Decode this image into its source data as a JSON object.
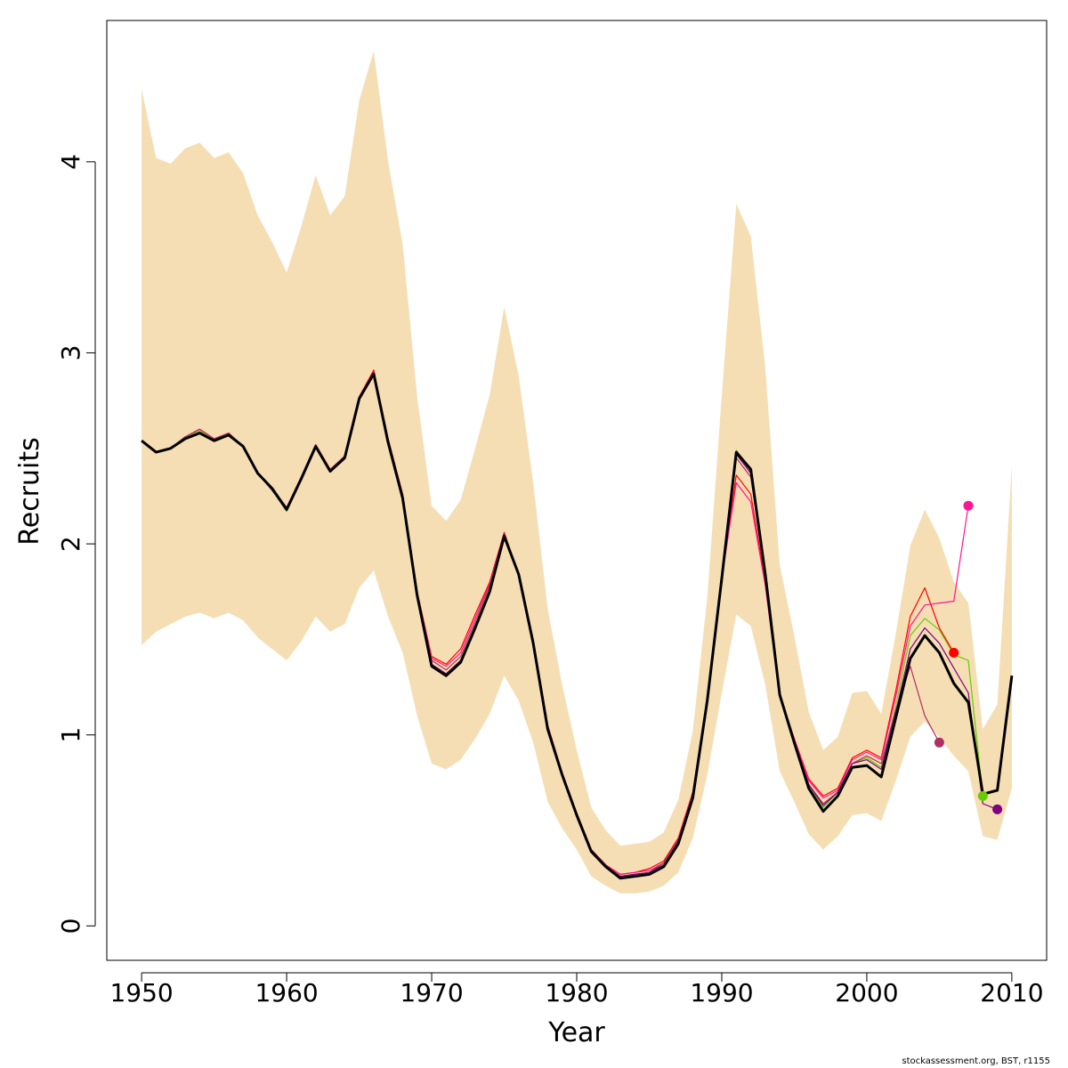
{
  "chart_data": {
    "type": "line",
    "xlabel": "Year",
    "ylabel": "Recruits",
    "xlim": [
      1947.6,
      2012.4
    ],
    "ylim": [
      -0.18,
      4.74
    ],
    "x_ticks": [
      1950,
      1960,
      1970,
      1980,
      1990,
      2000,
      2010
    ],
    "y_ticks": [
      0,
      1,
      2,
      3,
      4
    ],
    "grid": false,
    "legend": "none",
    "band": {
      "color": "#F5DEB3",
      "x": [
        1950,
        1951,
        1952,
        1953,
        1954,
        1955,
        1956,
        1957,
        1958,
        1959,
        1960,
        1961,
        1962,
        1963,
        1964,
        1965,
        1966,
        1967,
        1968,
        1969,
        1970,
        1971,
        1972,
        1973,
        1974,
        1975,
        1976,
        1977,
        1978,
        1979,
        1980,
        1981,
        1982,
        1983,
        1984,
        1985,
        1986,
        1987,
        1988,
        1989,
        1990,
        1991,
        1992,
        1993,
        1994,
        1995,
        1996,
        1997,
        1998,
        1999,
        2000,
        2001,
        2002,
        2003,
        2004,
        2005,
        2006,
        2007,
        2008,
        2009,
        2010
      ],
      "upper": [
        4.38,
        4.02,
        3.99,
        4.07,
        4.1,
        4.02,
        4.05,
        3.94,
        3.72,
        3.58,
        3.42,
        3.66,
        3.93,
        3.72,
        3.82,
        4.32,
        4.58,
        4.0,
        3.57,
        2.77,
        2.2,
        2.12,
        2.23,
        2.5,
        2.78,
        3.24,
        2.88,
        2.32,
        1.66,
        1.26,
        0.92,
        0.62,
        0.5,
        0.42,
        0.43,
        0.44,
        0.49,
        0.66,
        1.02,
        1.72,
        2.78,
        3.78,
        3.61,
        2.92,
        1.89,
        1.52,
        1.12,
        0.92,
        0.99,
        1.22,
        1.23,
        1.11,
        1.53,
        1.99,
        2.18,
        2.03,
        1.8,
        1.69,
        1.03,
        1.16,
        2.41
      ],
      "lower": [
        1.47,
        1.54,
        1.58,
        1.62,
        1.64,
        1.61,
        1.64,
        1.6,
        1.51,
        1.45,
        1.39,
        1.49,
        1.62,
        1.54,
        1.58,
        1.77,
        1.86,
        1.62,
        1.43,
        1.1,
        0.85,
        0.82,
        0.87,
        0.98,
        1.11,
        1.31,
        1.18,
        0.96,
        0.65,
        0.51,
        0.4,
        0.26,
        0.21,
        0.17,
        0.17,
        0.18,
        0.21,
        0.28,
        0.46,
        0.79,
        1.22,
        1.63,
        1.57,
        1.26,
        0.81,
        0.65,
        0.48,
        0.4,
        0.47,
        0.58,
        0.59,
        0.55,
        0.76,
        0.99,
        1.07,
        0.99,
        0.89,
        0.81,
        0.47,
        0.45,
        0.72
      ]
    },
    "series": [
      {
        "color": "#000000",
        "width": 3,
        "marker": false,
        "x": [
          1950,
          1951,
          1952,
          1953,
          1954,
          1955,
          1956,
          1957,
          1958,
          1959,
          1960,
          1961,
          1962,
          1963,
          1964,
          1965,
          1966,
          1967,
          1968,
          1969,
          1970,
          1971,
          1972,
          1973,
          1974,
          1975,
          1976,
          1977,
          1978,
          1979,
          1980,
          1981,
          1982,
          1983,
          1984,
          1985,
          1986,
          1987,
          1988,
          1989,
          1990,
          1991,
          1992,
          1993,
          1994,
          1995,
          1996,
          1997,
          1998,
          1999,
          2000,
          2001,
          2002,
          2003,
          2004,
          2005,
          2006,
          2007,
          2008,
          2009,
          2010
        ],
        "values": [
          2.54,
          2.48,
          2.5,
          2.55,
          2.58,
          2.54,
          2.57,
          2.51,
          2.37,
          2.29,
          2.18,
          2.34,
          2.51,
          2.38,
          2.45,
          2.76,
          2.89,
          2.53,
          2.24,
          1.73,
          1.36,
          1.31,
          1.38,
          1.56,
          1.75,
          2.04,
          1.84,
          1.48,
          1.03,
          0.79,
          0.58,
          0.39,
          0.31,
          0.25,
          0.26,
          0.27,
          0.31,
          0.43,
          0.67,
          1.18,
          1.82,
          2.48,
          2.39,
          1.84,
          1.21,
          0.96,
          0.72,
          0.6,
          0.68,
          0.83,
          0.84,
          0.78,
          1.09,
          1.4,
          1.52,
          1.43,
          1.27,
          1.17,
          0.69,
          0.71,
          1.31
        ]
      },
      {
        "color": "#66CC00",
        "width": 1.2,
        "marker": true,
        "x": [
          1950,
          1951,
          1952,
          1953,
          1954,
          1955,
          1956,
          1957,
          1958,
          1959,
          1960,
          1961,
          1962,
          1963,
          1964,
          1965,
          1966,
          1967,
          1968,
          1969,
          1970,
          1971,
          1972,
          1973,
          1974,
          1975,
          1976,
          1977,
          1978,
          1979,
          1980,
          1981,
          1982,
          1983,
          1984,
          1985,
          1986,
          1987,
          1988,
          1989,
          1990,
          1991,
          1992,
          1993,
          1994,
          1995,
          1996,
          1997,
          1998,
          1999,
          2000,
          2001,
          2002,
          2003,
          2004,
          2005,
          2006,
          2007,
          2008
        ],
        "values": [
          2.54,
          2.48,
          2.5,
          2.56,
          2.59,
          2.55,
          2.58,
          2.51,
          2.37,
          2.28,
          2.17,
          2.34,
          2.51,
          2.39,
          2.46,
          2.76,
          2.9,
          2.54,
          2.25,
          1.74,
          1.37,
          1.32,
          1.39,
          1.57,
          1.76,
          2.05,
          1.84,
          1.49,
          1.04,
          0.79,
          0.59,
          0.4,
          0.31,
          0.26,
          0.27,
          0.28,
          0.32,
          0.44,
          0.68,
          1.19,
          1.85,
          2.49,
          2.38,
          1.85,
          1.22,
          0.98,
          0.73,
          0.62,
          0.7,
          0.85,
          0.88,
          0.83,
          1.15,
          1.52,
          1.61,
          1.55,
          1.42,
          1.39,
          0.68
        ]
      },
      {
        "color": "#FF0000",
        "width": 1.2,
        "marker": true,
        "x": [
          1950,
          1951,
          1952,
          1953,
          1954,
          1955,
          1956,
          1957,
          1958,
          1959,
          1960,
          1961,
          1962,
          1963,
          1964,
          1965,
          1966,
          1967,
          1968,
          1969,
          1970,
          1971,
          1972,
          1973,
          1974,
          1975,
          1976,
          1977,
          1978,
          1979,
          1980,
          1981,
          1982,
          1983,
          1984,
          1985,
          1986,
          1987,
          1988,
          1989,
          1990,
          1991,
          1992,
          1993,
          1994,
          1995,
          1996,
          1997,
          1998,
          1999,
          2000,
          2001,
          2002,
          2003,
          2004,
          2005,
          2006
        ],
        "values": [
          2.54,
          2.48,
          2.5,
          2.56,
          2.6,
          2.55,
          2.58,
          2.51,
          2.37,
          2.29,
          2.19,
          2.35,
          2.52,
          2.39,
          2.46,
          2.77,
          2.91,
          2.55,
          2.26,
          1.75,
          1.41,
          1.37,
          1.45,
          1.63,
          1.8,
          2.06,
          1.84,
          1.5,
          1.05,
          0.8,
          0.59,
          0.4,
          0.32,
          0.27,
          0.28,
          0.3,
          0.34,
          0.46,
          0.7,
          1.2,
          1.84,
          2.36,
          2.26,
          1.8,
          1.21,
          0.98,
          0.77,
          0.68,
          0.72,
          0.88,
          0.92,
          0.88,
          1.23,
          1.62,
          1.77,
          1.56,
          1.43
        ]
      },
      {
        "color": "#FF1493",
        "width": 1.2,
        "marker": true,
        "x": [
          1950,
          1951,
          1952,
          1953,
          1954,
          1955,
          1956,
          1957,
          1958,
          1959,
          1960,
          1961,
          1962,
          1963,
          1964,
          1965,
          1966,
          1967,
          1968,
          1969,
          1970,
          1971,
          1972,
          1973,
          1974,
          1975,
          1976,
          1977,
          1978,
          1979,
          1980,
          1981,
          1982,
          1983,
          1984,
          1985,
          1986,
          1987,
          1988,
          1989,
          1990,
          1991,
          1992,
          1993,
          1994,
          1995,
          1996,
          1997,
          1998,
          1999,
          2000,
          2001,
          2002,
          2003,
          2004,
          2005,
          2006,
          2007
        ],
        "values": [
          2.54,
          2.48,
          2.5,
          2.56,
          2.6,
          2.55,
          2.58,
          2.51,
          2.37,
          2.29,
          2.19,
          2.35,
          2.52,
          2.39,
          2.46,
          2.77,
          2.9,
          2.55,
          2.26,
          1.75,
          1.4,
          1.36,
          1.43,
          1.61,
          1.79,
          2.05,
          1.84,
          1.5,
          1.05,
          0.8,
          0.59,
          0.4,
          0.32,
          0.27,
          0.28,
          0.29,
          0.33,
          0.45,
          0.69,
          1.19,
          1.82,
          2.32,
          2.22,
          1.78,
          1.2,
          0.98,
          0.76,
          0.67,
          0.71,
          0.87,
          0.91,
          0.87,
          1.2,
          1.57,
          1.68,
          1.69,
          1.7,
          2.2
        ]
      },
      {
        "color": "#B03060",
        "width": 1.2,
        "marker": true,
        "x": [
          1950,
          1951,
          1952,
          1953,
          1954,
          1955,
          1956,
          1957,
          1958,
          1959,
          1960,
          1961,
          1962,
          1963,
          1964,
          1965,
          1966,
          1967,
          1968,
          1969,
          1970,
          1971,
          1972,
          1973,
          1974,
          1975,
          1976,
          1977,
          1978,
          1979,
          1980,
          1981,
          1982,
          1983,
          1984,
          1985,
          1986,
          1987,
          1988,
          1989,
          1990,
          1991,
          1992,
          1993,
          1994,
          1995,
          1996,
          1997,
          1998,
          1999,
          2000,
          2001,
          2002,
          2003,
          2004,
          2005
        ],
        "values": [
          2.54,
          2.48,
          2.5,
          2.56,
          2.6,
          2.55,
          2.58,
          2.51,
          2.37,
          2.29,
          2.19,
          2.35,
          2.52,
          2.39,
          2.46,
          2.77,
          2.9,
          2.55,
          2.26,
          1.75,
          1.39,
          1.34,
          1.41,
          1.59,
          1.78,
          2.05,
          1.84,
          1.5,
          1.05,
          0.8,
          0.59,
          0.4,
          0.32,
          0.26,
          0.27,
          0.28,
          0.33,
          0.45,
          0.69,
          1.19,
          1.83,
          2.45,
          2.35,
          1.83,
          1.21,
          0.97,
          0.74,
          0.64,
          0.7,
          0.85,
          0.89,
          0.85,
          1.13,
          1.36,
          1.1,
          0.96
        ]
      },
      {
        "color": "#800080",
        "width": 1.2,
        "marker": true,
        "x": [
          1950,
          1951,
          1952,
          1953,
          1954,
          1955,
          1956,
          1957,
          1958,
          1959,
          1960,
          1961,
          1962,
          1963,
          1964,
          1965,
          1966,
          1967,
          1968,
          1969,
          1970,
          1971,
          1972,
          1973,
          1974,
          1975,
          1976,
          1977,
          1978,
          1979,
          1980,
          1981,
          1982,
          1983,
          1984,
          1985,
          1986,
          1987,
          1988,
          1989,
          1990,
          1991,
          1992,
          1993,
          1994,
          1995,
          1996,
          1997,
          1998,
          1999,
          2000,
          2001,
          2002,
          2003,
          2004,
          2005,
          2006,
          2007,
          2008,
          2009
        ],
        "values": [
          2.54,
          2.48,
          2.5,
          2.55,
          2.58,
          2.54,
          2.57,
          2.51,
          2.37,
          2.28,
          2.18,
          2.34,
          2.51,
          2.38,
          2.45,
          2.76,
          2.89,
          2.53,
          2.24,
          1.74,
          1.37,
          1.32,
          1.39,
          1.57,
          1.76,
          2.05,
          1.84,
          1.49,
          1.04,
          0.79,
          0.59,
          0.4,
          0.31,
          0.26,
          0.27,
          0.28,
          0.32,
          0.44,
          0.68,
          1.19,
          1.84,
          2.47,
          2.37,
          1.84,
          1.22,
          0.97,
          0.74,
          0.63,
          0.7,
          0.85,
          0.87,
          0.82,
          1.12,
          1.45,
          1.56,
          1.48,
          1.35,
          1.22,
          0.64,
          0.61
        ]
      }
    ]
  },
  "footer": "stockassessment.org, BST, r1155"
}
